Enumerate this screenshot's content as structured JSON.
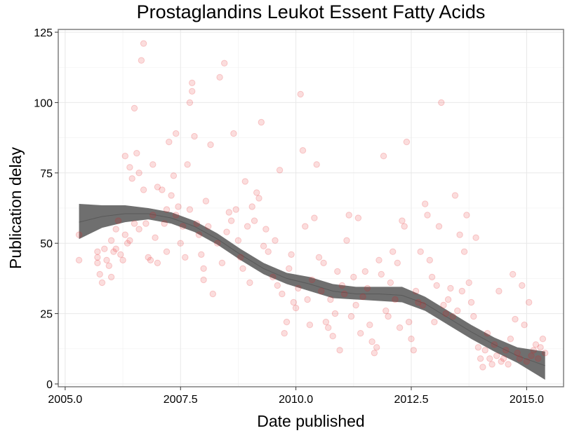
{
  "chart_data": {
    "type": "scatter",
    "title": "Prostaglandins Leukot Essent Fatty Acids",
    "xlabel": "Date published",
    "ylabel": "Publication delay",
    "xlim": [
      2004.85,
      2015.8
    ],
    "ylim": [
      -1,
      126
    ],
    "x_ticks": [
      2005.0,
      2007.5,
      2010.0,
      2012.5,
      2015.0
    ],
    "x_tick_labels": [
      "2005.0",
      "2007.5",
      "2010.0",
      "2012.5",
      "2015.0"
    ],
    "y_ticks": [
      0,
      25,
      50,
      75,
      100,
      125
    ],
    "y_tick_labels": [
      "0",
      "25",
      "50",
      "75",
      "100",
      "125"
    ],
    "grid": true,
    "point_color": "#e41a1c",
    "point_opacity": 0.15,
    "band_color": "#6f6f6f",
    "points": [
      [
        2005.3,
        44
      ],
      [
        2005.3,
        53
      ],
      [
        2005.7,
        47
      ],
      [
        2005.7,
        45
      ],
      [
        2005.7,
        43
      ],
      [
        2005.75,
        39
      ],
      [
        2005.8,
        36
      ],
      [
        2005.85,
        48
      ],
      [
        2005.9,
        44
      ],
      [
        2005.95,
        42
      ],
      [
        2006.0,
        38
      ],
      [
        2006.0,
        51
      ],
      [
        2006.05,
        47
      ],
      [
        2006.1,
        55
      ],
      [
        2006.1,
        48
      ],
      [
        2006.15,
        58
      ],
      [
        2006.2,
        46
      ],
      [
        2006.25,
        44
      ],
      [
        2006.3,
        53
      ],
      [
        2006.3,
        81
      ],
      [
        2006.35,
        50
      ],
      [
        2006.4,
        51
      ],
      [
        2006.4,
        77
      ],
      [
        2006.45,
        73
      ],
      [
        2006.5,
        98
      ],
      [
        2006.5,
        57
      ],
      [
        2006.55,
        82
      ],
      [
        2006.6,
        75
      ],
      [
        2006.6,
        55
      ],
      [
        2006.65,
        115
      ],
      [
        2006.7,
        121
      ],
      [
        2006.7,
        69
      ],
      [
        2006.75,
        57
      ],
      [
        2006.8,
        45
      ],
      [
        2006.85,
        44
      ],
      [
        2006.9,
        60
      ],
      [
        2006.9,
        78
      ],
      [
        2006.95,
        52
      ],
      [
        2007.0,
        70
      ],
      [
        2007.0,
        43
      ],
      [
        2007.1,
        69
      ],
      [
        2007.15,
        57
      ],
      [
        2007.2,
        62
      ],
      [
        2007.2,
        47
      ],
      [
        2007.25,
        86
      ],
      [
        2007.3,
        67
      ],
      [
        2007.35,
        74
      ],
      [
        2007.4,
        89
      ],
      [
        2007.4,
        60
      ],
      [
        2007.45,
        63
      ],
      [
        2007.5,
        50
      ],
      [
        2007.55,
        56
      ],
      [
        2007.6,
        45
      ],
      [
        2007.65,
        78
      ],
      [
        2007.7,
        62
      ],
      [
        2007.7,
        100
      ],
      [
        2007.75,
        107
      ],
      [
        2007.75,
        104
      ],
      [
        2007.8,
        88
      ],
      [
        2007.85,
        57
      ],
      [
        2007.9,
        53
      ],
      [
        2007.95,
        46
      ],
      [
        2008.0,
        41
      ],
      [
        2008.0,
        37
      ],
      [
        2008.05,
        65
      ],
      [
        2008.1,
        56
      ],
      [
        2008.15,
        85
      ],
      [
        2008.2,
        32
      ],
      [
        2008.3,
        50
      ],
      [
        2008.35,
        109
      ],
      [
        2008.4,
        43
      ],
      [
        2008.45,
        114
      ],
      [
        2008.5,
        54
      ],
      [
        2008.55,
        61
      ],
      [
        2008.6,
        58
      ],
      [
        2008.65,
        89
      ],
      [
        2008.7,
        62
      ],
      [
        2008.75,
        51
      ],
      [
        2008.8,
        45
      ],
      [
        2008.85,
        41
      ],
      [
        2008.9,
        72
      ],
      [
        2008.95,
        56
      ],
      [
        2009.0,
        36
      ],
      [
        2009.05,
        63
      ],
      [
        2009.1,
        58
      ],
      [
        2009.15,
        68
      ],
      [
        2009.2,
        66
      ],
      [
        2009.25,
        93
      ],
      [
        2009.3,
        49
      ],
      [
        2009.35,
        55
      ],
      [
        2009.4,
        47
      ],
      [
        2009.5,
        38
      ],
      [
        2009.55,
        51
      ],
      [
        2009.6,
        35
      ],
      [
        2009.65,
        76
      ],
      [
        2009.7,
        32
      ],
      [
        2009.75,
        18
      ],
      [
        2009.8,
        22
      ],
      [
        2009.85,
        41
      ],
      [
        2009.9,
        46
      ],
      [
        2009.95,
        29
      ],
      [
        2010.0,
        27
      ],
      [
        2010.05,
        34
      ],
      [
        2010.1,
        103
      ],
      [
        2010.15,
        83
      ],
      [
        2010.2,
        56
      ],
      [
        2010.25,
        30
      ],
      [
        2010.3,
        21
      ],
      [
        2010.35,
        37
      ],
      [
        2010.4,
        59
      ],
      [
        2010.45,
        78
      ],
      [
        2010.5,
        45
      ],
      [
        2010.55,
        33
      ],
      [
        2010.6,
        43
      ],
      [
        2010.65,
        22
      ],
      [
        2010.7,
        20
      ],
      [
        2010.75,
        30
      ],
      [
        2010.8,
        17
      ],
      [
        2010.85,
        25
      ],
      [
        2010.9,
        40
      ],
      [
        2010.95,
        12
      ],
      [
        2011.0,
        35
      ],
      [
        2011.05,
        32
      ],
      [
        2011.1,
        51
      ],
      [
        2011.15,
        60
      ],
      [
        2011.2,
        24
      ],
      [
        2011.25,
        38
      ],
      [
        2011.3,
        28
      ],
      [
        2011.35,
        59
      ],
      [
        2011.4,
        18
      ],
      [
        2011.45,
        31
      ],
      [
        2011.5,
        40
      ],
      [
        2011.55,
        34
      ],
      [
        2011.6,
        21
      ],
      [
        2011.65,
        15
      ],
      [
        2011.7,
        11
      ],
      [
        2011.75,
        13
      ],
      [
        2011.8,
        44
      ],
      [
        2011.85,
        39
      ],
      [
        2011.9,
        81
      ],
      [
        2011.95,
        26
      ],
      [
        2012.0,
        24
      ],
      [
        2012.05,
        36
      ],
      [
        2012.1,
        47
      ],
      [
        2012.15,
        30
      ],
      [
        2012.2,
        43
      ],
      [
        2012.25,
        20
      ],
      [
        2012.3,
        58
      ],
      [
        2012.35,
        56
      ],
      [
        2012.4,
        86
      ],
      [
        2012.45,
        22
      ],
      [
        2012.5,
        16
      ],
      [
        2012.55,
        12
      ],
      [
        2012.6,
        33
      ],
      [
        2012.65,
        29
      ],
      [
        2012.7,
        47
      ],
      [
        2012.75,
        28
      ],
      [
        2012.8,
        64
      ],
      [
        2012.85,
        60
      ],
      [
        2012.9,
        44
      ],
      [
        2012.95,
        38
      ],
      [
        2013.0,
        22
      ],
      [
        2013.05,
        35
      ],
      [
        2013.1,
        56
      ],
      [
        2013.15,
        100
      ],
      [
        2013.2,
        28
      ],
      [
        2013.25,
        25
      ],
      [
        2013.3,
        30
      ],
      [
        2013.35,
        34
      ],
      [
        2013.4,
        24
      ],
      [
        2013.45,
        67
      ],
      [
        2013.5,
        26
      ],
      [
        2013.55,
        53
      ],
      [
        2013.6,
        33
      ],
      [
        2013.65,
        47
      ],
      [
        2013.7,
        60
      ],
      [
        2013.75,
        36
      ],
      [
        2013.8,
        29
      ],
      [
        2013.85,
        24
      ],
      [
        2013.9,
        52
      ],
      [
        2013.95,
        13
      ],
      [
        2014.0,
        9
      ],
      [
        2014.05,
        6
      ],
      [
        2014.1,
        12
      ],
      [
        2014.15,
        18
      ],
      [
        2014.2,
        9
      ],
      [
        2014.25,
        7
      ],
      [
        2014.3,
        14
      ],
      [
        2014.35,
        10
      ],
      [
        2014.4,
        33
      ],
      [
        2014.45,
        8
      ],
      [
        2014.5,
        9
      ],
      [
        2014.55,
        12
      ],
      [
        2014.6,
        7
      ],
      [
        2014.65,
        16
      ],
      [
        2014.7,
        39
      ],
      [
        2014.75,
        23
      ],
      [
        2014.8,
        11
      ],
      [
        2014.85,
        9
      ],
      [
        2014.9,
        35
      ],
      [
        2014.95,
        21
      ],
      [
        2015.0,
        8
      ],
      [
        2015.05,
        29
      ],
      [
        2015.1,
        10
      ],
      [
        2015.15,
        12
      ],
      [
        2015.2,
        14
      ],
      [
        2015.25,
        9
      ],
      [
        2015.3,
        13
      ],
      [
        2015.35,
        16
      ],
      [
        2015.4,
        11
      ]
    ],
    "smooth": {
      "x": [
        2005.3,
        2005.8,
        2006.3,
        2006.8,
        2007.3,
        2007.8,
        2008.3,
        2008.8,
        2009.3,
        2009.8,
        2010.3,
        2010.8,
        2011.3,
        2011.8,
        2012.3,
        2012.8,
        2013.3,
        2013.8,
        2014.3,
        2014.8,
        2015.4
      ],
      "y": [
        57.5,
        59.5,
        60.5,
        60.5,
        59,
        56,
        51.5,
        46,
        41,
        37.5,
        35.5,
        33,
        32,
        32,
        31.5,
        28.5,
        23.5,
        18.5,
        14,
        10,
        6.5
      ],
      "y_lower": [
        51.5,
        55.5,
        57.5,
        58.5,
        57,
        54,
        49.5,
        44,
        39,
        35.5,
        33,
        30.5,
        30,
        29.5,
        29,
        26,
        21,
        16,
        11.5,
        7.5,
        1.5
      ],
      "y_upper": [
        64,
        63.5,
        63.5,
        62.5,
        61,
        58,
        53.5,
        48,
        43,
        39.5,
        38,
        35.5,
        34.5,
        34.5,
        34.5,
        31,
        26,
        21,
        16.5,
        13,
        11.5
      ]
    }
  }
}
